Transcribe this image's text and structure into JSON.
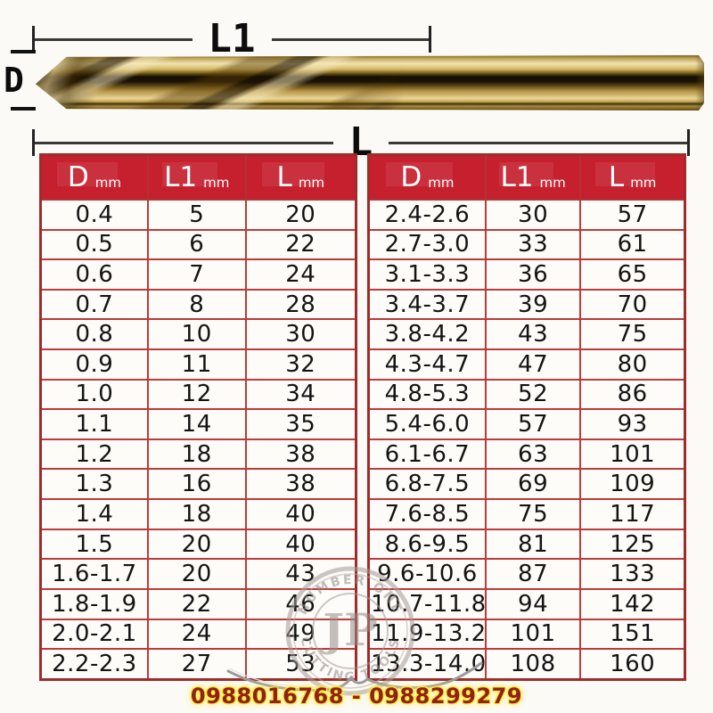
{
  "diagram": {
    "label_l1": "L1",
    "label_d": "D",
    "label_l": "L"
  },
  "tables": [
    {
      "headers": [
        {
          "main": "D",
          "unit": "mm"
        },
        {
          "main": "L1",
          "unit": "mm"
        },
        {
          "main": "L",
          "unit": "mm"
        }
      ],
      "rows": [
        [
          "0.4",
          "5",
          "20"
        ],
        [
          "0.5",
          "6",
          "22"
        ],
        [
          "0.6",
          "7",
          "24"
        ],
        [
          "0.7",
          "8",
          "28"
        ],
        [
          "0.8",
          "10",
          "30"
        ],
        [
          "0.9",
          "11",
          "32"
        ],
        [
          "1.0",
          "12",
          "34"
        ],
        [
          "1.1",
          "14",
          "35"
        ],
        [
          "1.2",
          "18",
          "38"
        ],
        [
          "1.3",
          "16",
          "38"
        ],
        [
          "1.4",
          "18",
          "40"
        ],
        [
          "1.5",
          "20",
          "40"
        ],
        [
          "1.6-1.7",
          "20",
          "43"
        ],
        [
          "1.8-1.9",
          "22",
          "46"
        ],
        [
          "2.0-2.1",
          "24",
          "49"
        ],
        [
          "2.2-2.3",
          "27",
          "53"
        ]
      ]
    },
    {
      "headers": [
        {
          "main": "D",
          "unit": "mm"
        },
        {
          "main": "L1",
          "unit": "mm"
        },
        {
          "main": "L",
          "unit": "mm"
        }
      ],
      "rows": [
        [
          "2.4-2.6",
          "30",
          "57"
        ],
        [
          "2.7-3.0",
          "33",
          "61"
        ],
        [
          "3.1-3.3",
          "36",
          "65"
        ],
        [
          "3.4-3.7",
          "39",
          "70"
        ],
        [
          "3.8-4.2",
          "43",
          "75"
        ],
        [
          "4.3-4.7",
          "47",
          "80"
        ],
        [
          "4.8-5.3",
          "52",
          "86"
        ],
        [
          "5.4-6.0",
          "57",
          "93"
        ],
        [
          "6.1-6.7",
          "63",
          "101"
        ],
        [
          "6.8-7.5",
          "69",
          "109"
        ],
        [
          "7.6-8.5",
          "75",
          "117"
        ],
        [
          "8.6-9.5",
          "81",
          "125"
        ],
        [
          "9.6-10.6",
          "87",
          "133"
        ],
        [
          "10.7-11.8",
          "94",
          "142"
        ],
        [
          "11.9-13.2",
          "101",
          "151"
        ],
        [
          "13.3-14.0",
          "108",
          "160"
        ]
      ]
    }
  ],
  "watermark": {
    "initials": "JP",
    "arc_top": "NUMBER ONE",
    "arc_bottom": "CUTTING TOOLS"
  },
  "footer": {
    "phone": "0988016768 - 0988299279"
  },
  "colors": {
    "header_red": "#c6202e",
    "grid_red": "#bd3a3a",
    "drill_gold": "#d6b964",
    "phone_text": "#8f2020",
    "phone_glow": "#ffe71a"
  }
}
